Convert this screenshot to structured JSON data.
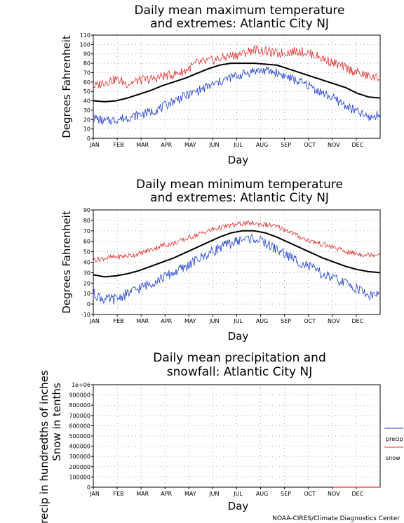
{
  "credit": "NOAA-CIRES/Climate Diagnostics Center",
  "colors": {
    "mean": "#000000",
    "max": "#e03030",
    "min": "#1f3fcf",
    "grid": "#888888"
  },
  "chart_data": [
    {
      "type": "line",
      "title_line1": "Daily mean maximum temperature",
      "title_line2": "and extremes: Atlantic City NJ",
      "ylabel": "Degrees Fahrenheit",
      "xlabel": "Day",
      "x_ticks": [
        "JAN",
        "FEB",
        "MAR",
        "APR",
        "MAY",
        "JUN",
        "JUL",
        "AUG",
        "SEP",
        "OCT",
        "NOV",
        "DEC"
      ],
      "y_ticks": [
        "0",
        "10",
        "20",
        "30",
        "40",
        "50",
        "60",
        "70",
        "80",
        "90",
        "100",
        "110"
      ],
      "ylim": [
        0,
        110
      ],
      "grid": true,
      "series": [
        {
          "key": "mean",
          "values": [
            40,
            39,
            40,
            43,
            47,
            51,
            56,
            60,
            64,
            69,
            74,
            78,
            80,
            80,
            80,
            79,
            78,
            74,
            70,
            66,
            62,
            58,
            54,
            48,
            44,
            43
          ]
        },
        {
          "key": "max",
          "values": [
            55,
            60,
            63,
            58,
            62,
            63,
            66,
            68,
            72,
            80,
            82,
            85,
            88,
            90,
            95,
            93,
            90,
            92,
            93,
            90,
            85,
            80,
            75,
            70,
            66,
            64
          ]
        },
        {
          "key": "min",
          "values": [
            22,
            18,
            20,
            22,
            25,
            28,
            33,
            40,
            45,
            50,
            55,
            60,
            65,
            68,
            72,
            72,
            70,
            65,
            60,
            55,
            48,
            42,
            35,
            28,
            22,
            25
          ]
        }
      ]
    },
    {
      "type": "line",
      "title_line1": "Daily mean minimum temperature",
      "title_line2": "and extremes: Atlantic City NJ",
      "ylabel": "Degrees Fahrenheit",
      "xlabel": "Day",
      "x_ticks": [
        "JAN",
        "FEB",
        "MAR",
        "APR",
        "MAY",
        "JUN",
        "JUL",
        "AUG",
        "SEP",
        "OCT",
        "NOV",
        "DEC"
      ],
      "y_ticks": [
        "-10",
        "0",
        "10",
        "20",
        "30",
        "40",
        "50",
        "60",
        "70",
        "80",
        "90"
      ],
      "ylim": [
        -10,
        90
      ],
      "grid": true,
      "series": [
        {
          "key": "mean",
          "values": [
            28,
            26,
            27,
            29,
            32,
            36,
            40,
            44,
            49,
            54,
            59,
            64,
            68,
            70,
            70,
            68,
            64,
            59,
            54,
            49,
            44,
            40,
            36,
            33,
            31,
            30
          ]
        },
        {
          "key": "max",
          "values": [
            42,
            44,
            45,
            46,
            48,
            52,
            56,
            58,
            62,
            66,
            70,
            73,
            75,
            77,
            77,
            76,
            74,
            70,
            64,
            60,
            57,
            54,
            50,
            48,
            47,
            48
          ]
        },
        {
          "key": "min",
          "values": [
            10,
            4,
            5,
            10,
            15,
            20,
            25,
            30,
            35,
            42,
            48,
            54,
            58,
            62,
            63,
            58,
            52,
            46,
            40,
            35,
            28,
            24,
            20,
            15,
            8,
            10
          ]
        }
      ]
    },
    {
      "type": "line",
      "title_line1": "Daily mean precipitation and",
      "title_line2": "snowfall: Atlantic City NJ",
      "ylabel_line1": "Precip in hundredths of inches",
      "ylabel_line2": "Snow in tenths",
      "xlabel": "Day",
      "x_ticks": [
        "JAN",
        "FEB",
        "MAR",
        "APR",
        "MAY",
        "JUN",
        "JUL",
        "AUG",
        "SEP",
        "OCT",
        "NOV",
        "DEC"
      ],
      "y_ticks": [
        "0",
        "100000",
        "200000",
        "300000",
        "400000",
        "500000",
        "600000",
        "700000",
        "800000",
        "900000",
        "1e+06"
      ],
      "ylim": [
        0,
        1000000
      ],
      "grid": true,
      "legend": [
        {
          "key": "precip",
          "label": "precip"
        },
        {
          "key": "snow",
          "label": "snow"
        }
      ],
      "legend_colors": {
        "precip": "#1f3fcf",
        "snow": "#e03030"
      },
      "series": [
        {
          "key": "snow",
          "x_range": [
            "NOV",
            "DEC"
          ],
          "values": [
            0,
            0
          ]
        }
      ]
    }
  ]
}
